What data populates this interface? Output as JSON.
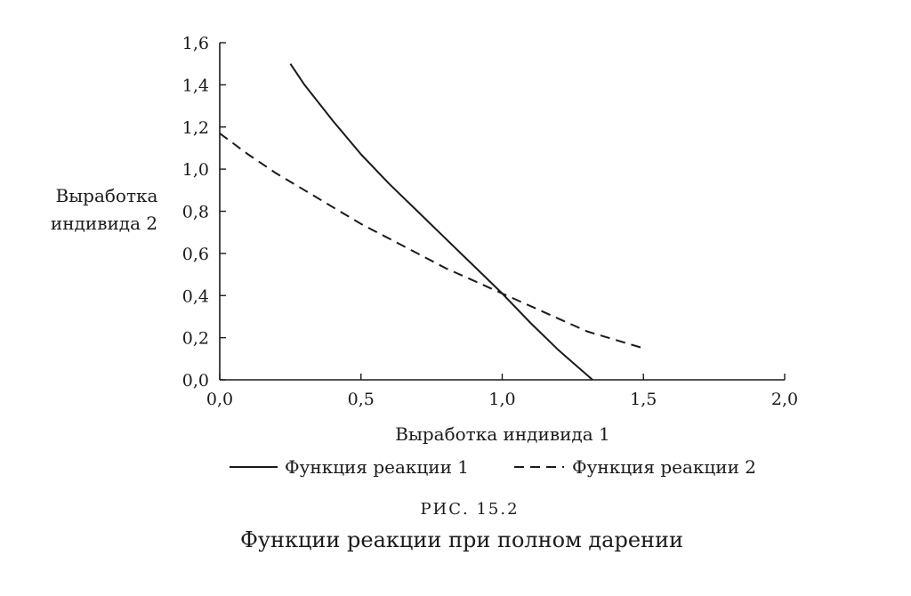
{
  "chart_data": {
    "type": "line",
    "xlabel": "Выработка индивида 1",
    "ylabel_lines": [
      "Выработка",
      "индивида 2"
    ],
    "xlim": [
      0,
      2
    ],
    "ylim": [
      0,
      1.6
    ],
    "x_ticks": [
      0,
      0.5,
      1,
      1.5,
      2
    ],
    "x_tick_labels": [
      "0,0",
      "0,5",
      "1,0",
      "1,5",
      "2,0"
    ],
    "y_ticks": [
      0,
      0.2,
      0.4,
      0.6,
      0.8,
      1,
      1.2,
      1.4,
      1.6
    ],
    "y_tick_labels": [
      "0,0",
      "0,2",
      "0,4",
      "0,6",
      "0,8",
      "1,0",
      "1,2",
      "1,4",
      "1,6"
    ],
    "grid": false,
    "legend_position": "bottom",
    "series": [
      {
        "name": "Функция реакции 1",
        "style": "solid",
        "x": [
          0.25,
          0.3,
          0.4,
          0.5,
          0.6,
          0.7,
          0.8,
          0.9,
          1.0,
          1.1,
          1.2,
          1.32
        ],
        "y": [
          1.5,
          1.4,
          1.23,
          1.07,
          0.93,
          0.8,
          0.67,
          0.54,
          0.41,
          0.27,
          0.14,
          0.0
        ]
      },
      {
        "name": "Функция реакции 2",
        "style": "dashed",
        "x": [
          0.0,
          0.1,
          0.2,
          0.3,
          0.4,
          0.5,
          0.6,
          0.7,
          0.8,
          0.9,
          1.0,
          1.1,
          1.2,
          1.3,
          1.4,
          1.5
        ],
        "y": [
          1.17,
          1.07,
          0.98,
          0.9,
          0.82,
          0.74,
          0.67,
          0.6,
          0.53,
          0.47,
          0.41,
          0.35,
          0.29,
          0.23,
          0.19,
          0.15
        ]
      }
    ],
    "figure_number": "РИС. 15.2",
    "caption": "Функции реакции при полном дарении"
  }
}
